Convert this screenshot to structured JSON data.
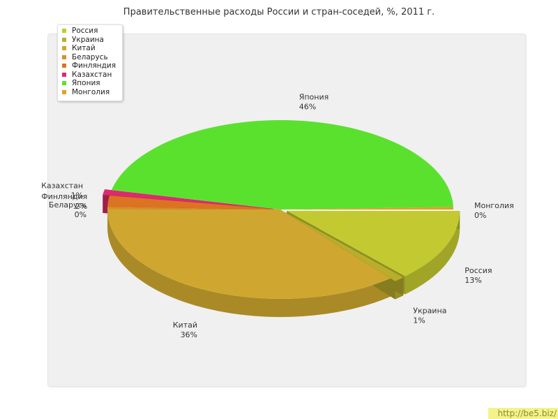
{
  "chart_data": {
    "type": "pie",
    "title": "Правительственные расходы России и стран-соседей, %, 2011 г.",
    "categories": [
      "Россия",
      "Украина",
      "Китай",
      "Беларусь",
      "Финляндия",
      "Казахстан",
      "Япония",
      "Монголия"
    ],
    "values": [
      13,
      1,
      36,
      0,
      2,
      1,
      46,
      0
    ],
    "value_labels": [
      "13%",
      "1%",
      "36%",
      "0%",
      "2%",
      "1%",
      "46%",
      "0%"
    ],
    "colors": [
      "#c3c930",
      "#b9ae2c",
      "#cfa730",
      "#d8902a",
      "#dc7322",
      "#dc2a6e",
      "#5ae12e",
      "#e0a321"
    ],
    "legend_position": "top-left",
    "exploded": [
      "Россия",
      "Украина",
      "Казахстан"
    ]
  },
  "watermark": "http://be5.biz/"
}
